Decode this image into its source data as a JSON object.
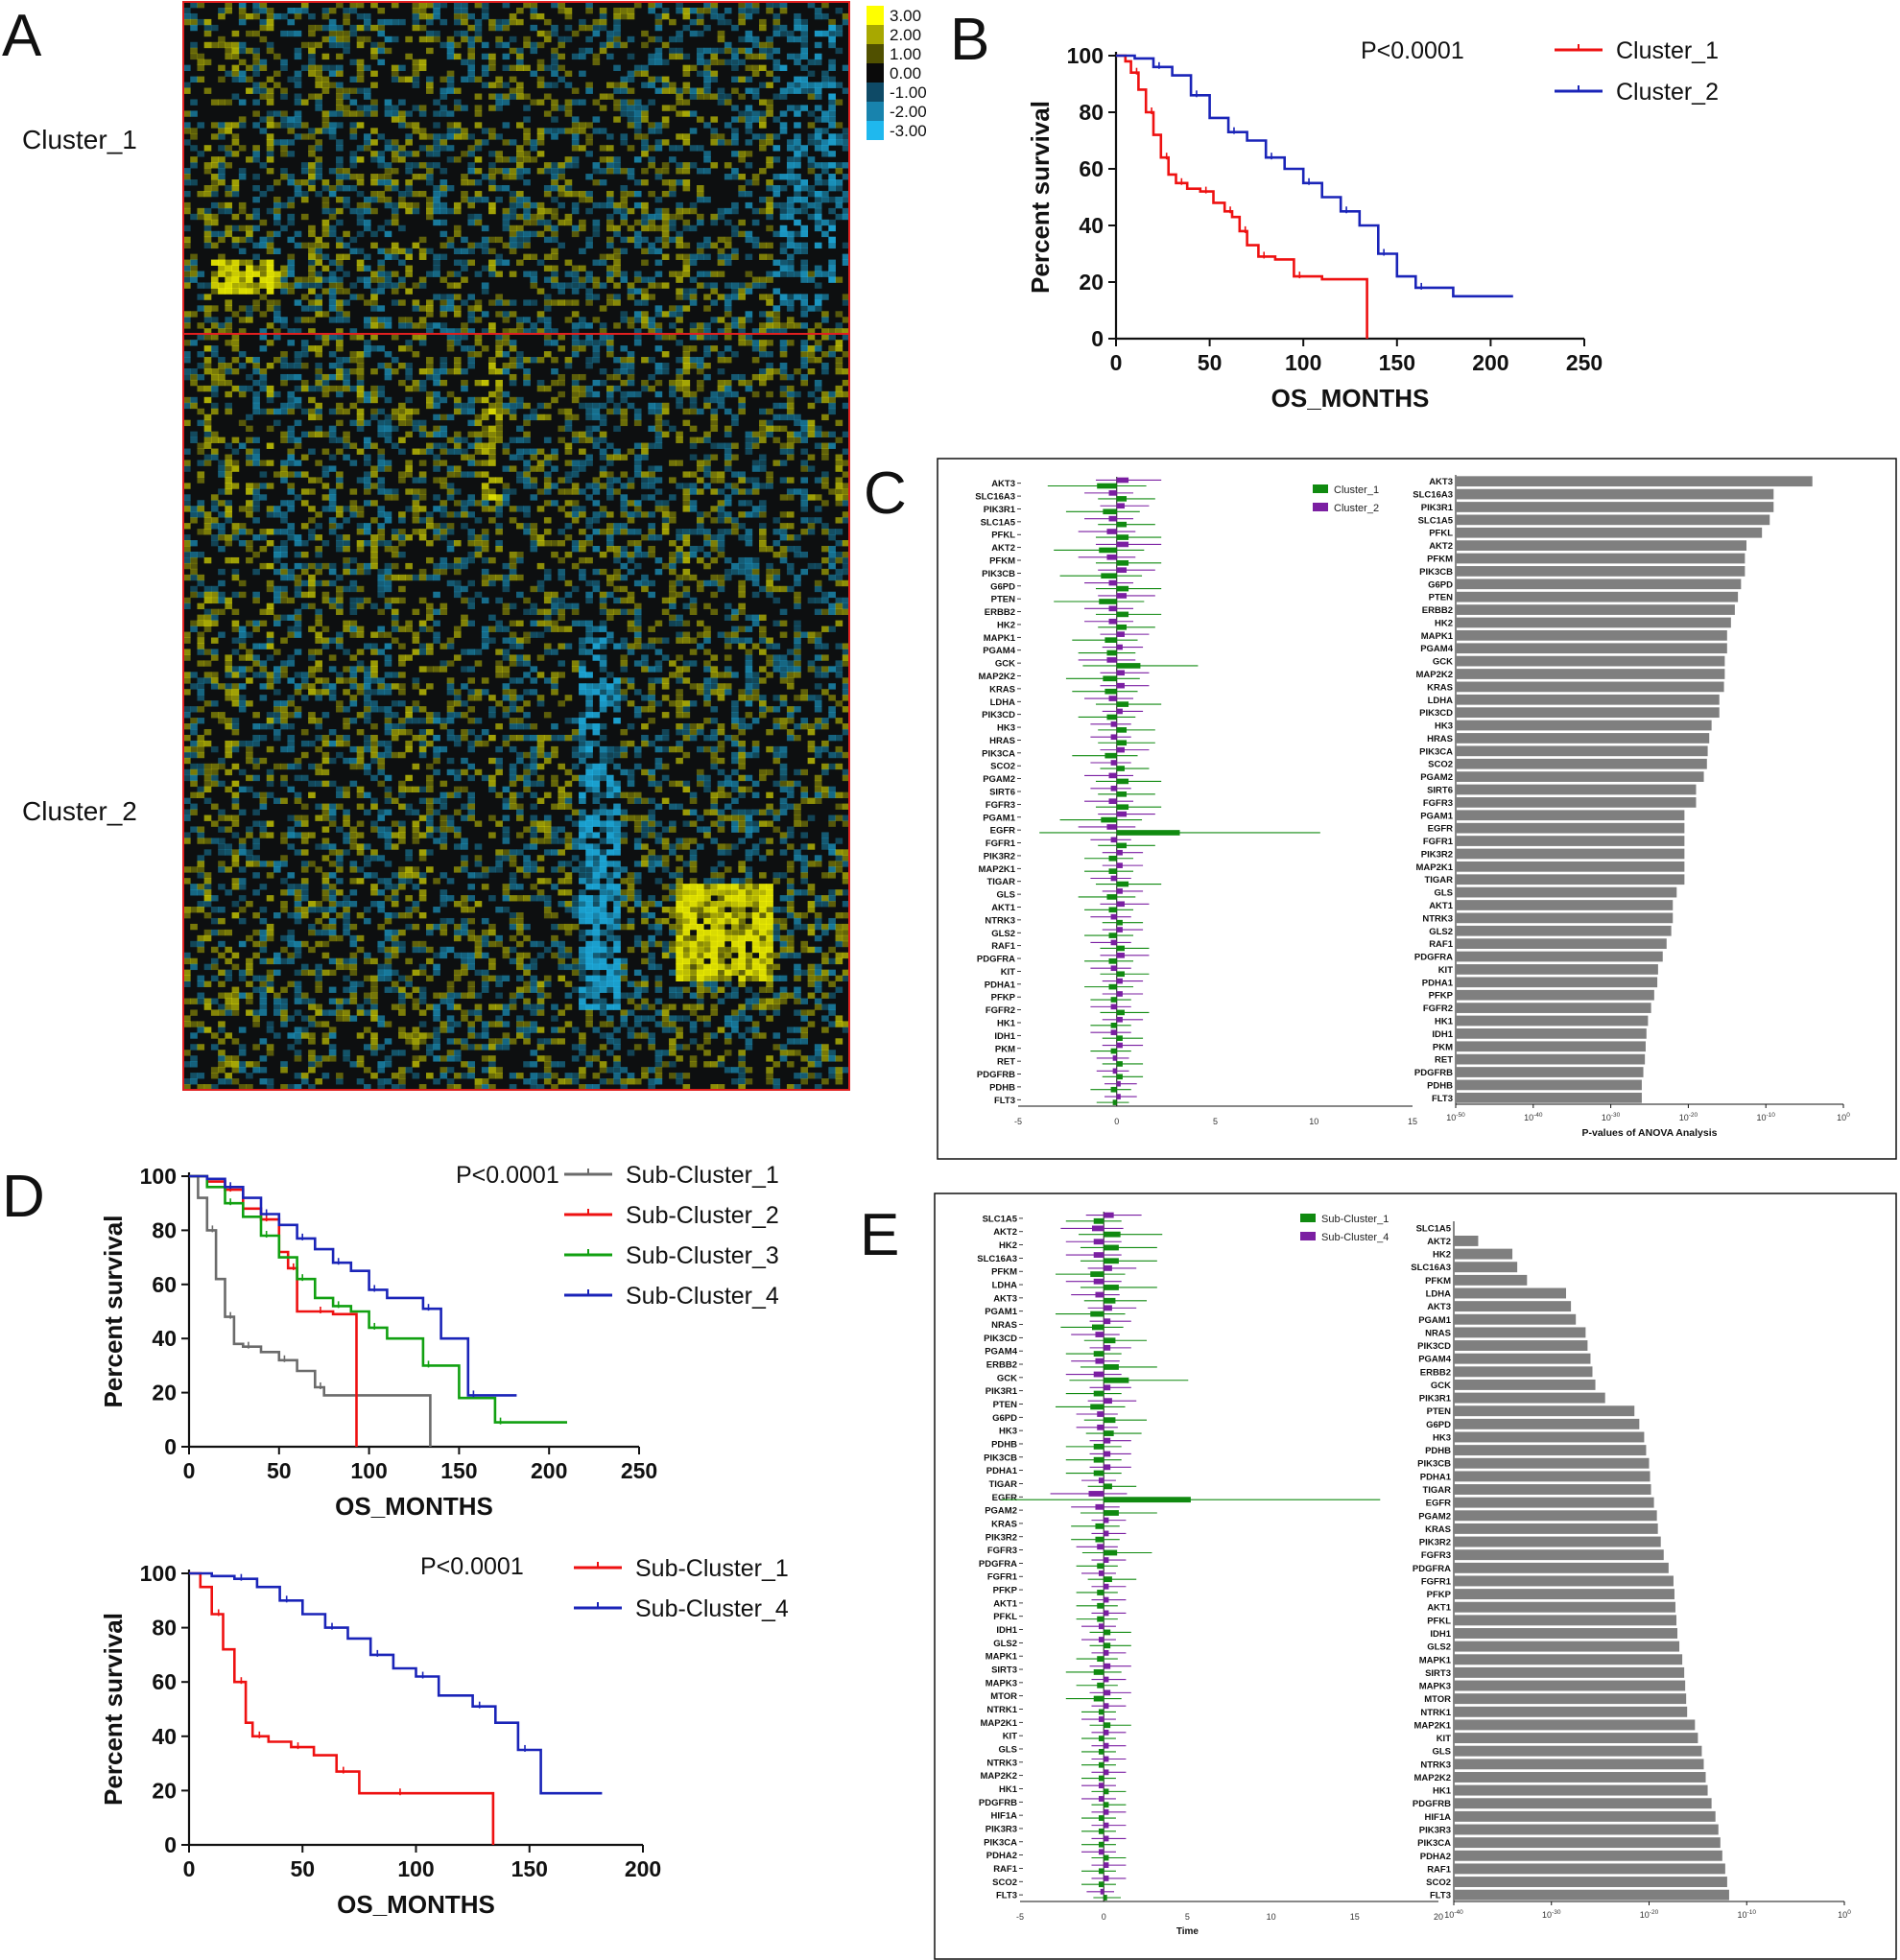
{
  "chart_data": [
    {
      "panel": "A",
      "type": "heatmap",
      "title": "",
      "row_groups": [
        "Cluster_1",
        "Cluster_2"
      ],
      "legend_values": [
        "3.00",
        "2.00",
        "1.00",
        "0.00",
        "-1.00",
        "-2.00",
        "-3.00"
      ],
      "colors": {
        "high": "#ffff00",
        "mid": "#101010",
        "low": "#1fb8ee",
        "border": "#e02020"
      }
    },
    {
      "panel": "B",
      "type": "line",
      "title": "",
      "xlabel": "OS_MONTHS",
      "ylabel": "Percent survival",
      "xlim": [
        0,
        250
      ],
      "ylim": [
        0,
        100
      ],
      "xticks": [
        0,
        50,
        100,
        150,
        200,
        250
      ],
      "yticks": [
        0,
        20,
        40,
        60,
        80,
        100
      ],
      "annotation": "P<0.0001",
      "series": [
        {
          "name": "Cluster_1",
          "color": "#ee1111",
          "x": [
            0,
            5,
            8,
            12,
            16,
            20,
            24,
            28,
            32,
            38,
            45,
            52,
            58,
            62,
            66,
            70,
            76,
            85,
            95,
            110,
            134
          ],
          "y": [
            100,
            98,
            94,
            88,
            80,
            72,
            64,
            58,
            55,
            53,
            52,
            48,
            45,
            43,
            38,
            33,
            29,
            28,
            22,
            21,
            0
          ]
        },
        {
          "name": "Cluster_2",
          "color": "#1a24b8",
          "x": [
            0,
            10,
            20,
            30,
            40,
            50,
            60,
            70,
            80,
            90,
            100,
            110,
            120,
            130,
            140,
            150,
            160,
            180,
            212
          ],
          "y": [
            100,
            99,
            96,
            93,
            86,
            78,
            73,
            70,
            64,
            60,
            55,
            50,
            45,
            40,
            30,
            22,
            18,
            15,
            15
          ]
        }
      ]
    },
    {
      "panel": "C",
      "type": "bar",
      "title": "",
      "legend": [
        "Cluster_1",
        "Cluster_2"
      ],
      "legend_colors": [
        "#108a10",
        "#7b1fa2"
      ],
      "left_xticks": [
        "-5",
        "0",
        "5",
        "10",
        "15"
      ],
      "right_xlabel": "P-values of ANOVA Analysis",
      "right_xticks": [
        "10-50",
        "10-40",
        "10-30",
        "10-20",
        "10-10",
        "100"
      ],
      "categories": [
        "AKT3",
        "SLC16A3",
        "PIK3R1",
        "SLC1A5",
        "PFKL",
        "AKT2",
        "PFKM",
        "PIK3CB",
        "G6PD",
        "PTEN",
        "ERBB2",
        "HK2",
        "MAPK1",
        "PGAM4",
        "GCK",
        "MAP2K2",
        "KRAS",
        "LDHA",
        "PIK3CD",
        "HK3",
        "HRAS",
        "PIK3CA",
        "SCO2",
        "PGAM2",
        "SIRT6",
        "FGFR3",
        "PGAM1",
        "EGFR",
        "FGFR1",
        "PIK3R2",
        "MAP2K1",
        "TIGAR",
        "GLS",
        "AKT1",
        "NTRK3",
        "GLS2",
        "RAF1",
        "PDGFRA",
        "KIT",
        "PDHA1",
        "PFKP",
        "FGFR2",
        "HK1",
        "IDH1",
        "PKM",
        "RET",
        "PDGFRB",
        "PDHB",
        "FLT3"
      ],
      "series": [
        {
          "name": "Cluster_1",
          "values": [
            -1.0,
            0.5,
            -0.7,
            0.5,
            0.6,
            -0.9,
            0.6,
            -0.8,
            0.6,
            -0.9,
            0.6,
            0.5,
            -0.6,
            -0.5,
            1.2,
            -0.7,
            -0.6,
            0.6,
            -0.5,
            0.5,
            0.5,
            -0.6,
            0.4,
            0.6,
            0.5,
            0.6,
            -0.8,
            3.2,
            0.5,
            -0.4,
            -0.4,
            0.6,
            -0.5,
            -0.4,
            0.3,
            -0.4,
            0.4,
            -0.4,
            0.4,
            -0.4,
            -0.3,
            0.4,
            -0.3,
            0.3,
            -0.3,
            0.3,
            0.3,
            -0.3,
            -0.2
          ]
        },
        {
          "name": "Cluster_2",
          "values": [
            0.6,
            -0.4,
            0.4,
            -0.4,
            -0.5,
            0.6,
            -0.5,
            0.5,
            -0.4,
            0.5,
            -0.4,
            -0.4,
            0.4,
            0.3,
            -0.5,
            0.4,
            0.4,
            -0.4,
            0.3,
            -0.3,
            -0.3,
            0.4,
            -0.3,
            -0.4,
            -0.3,
            -0.4,
            0.5,
            -0.5,
            -0.3,
            0.3,
            0.3,
            -0.3,
            0.3,
            0.4,
            -0.3,
            0.3,
            -0.3,
            0.4,
            -0.3,
            0.3,
            0.3,
            -0.3,
            0.3,
            -0.3,
            0.3,
            -0.2,
            -0.2,
            0.2,
            0.2
          ]
        }
      ],
      "pvalue_log10": [
        -4,
        -9,
        -9,
        -9.5,
        -10.5,
        -12.5,
        -12.7,
        -12.7,
        -13.2,
        -13.6,
        -14,
        -14.5,
        -15,
        -15,
        -15.3,
        -15.3,
        -15.4,
        -16,
        -16,
        -17,
        -17.3,
        -17.5,
        -17.6,
        -18,
        -19,
        -19,
        -20.5,
        -20.5,
        -20.5,
        -20.5,
        -20.5,
        -20.5,
        -21.5,
        -22,
        -22,
        -22.2,
        -22.8,
        -23.3,
        -23.9,
        -24,
        -24.4,
        -24.8,
        -25.2,
        -25.4,
        -25.5,
        -25.6,
        -25.8,
        -26,
        -26
      ]
    },
    {
      "panel": "D",
      "type": "line",
      "title": "",
      "xlabel": "OS_MONTHS",
      "ylabel": "Percent survival",
      "xlim": [
        0,
        250
      ],
      "ylim": [
        0,
        100
      ],
      "xticks": [
        0,
        50,
        100,
        150,
        200,
        250
      ],
      "yticks": [
        0,
        20,
        40,
        60,
        80,
        100
      ],
      "annotation": "P<0.0001",
      "series": [
        {
          "name": "Sub-Cluster_1",
          "color": "#6b6b6b",
          "x": [
            0,
            5,
            10,
            15,
            20,
            25,
            30,
            40,
            50,
            60,
            70,
            75,
            90,
            100,
            134
          ],
          "y": [
            100,
            92,
            80,
            62,
            48,
            38,
            37,
            35,
            32,
            28,
            22,
            19,
            19,
            19,
            0
          ]
        },
        {
          "name": "Sub-Cluster_2",
          "color": "#ee1111",
          "x": [
            0,
            10,
            20,
            30,
            40,
            50,
            55,
            60,
            70,
            80,
            93
          ],
          "y": [
            100,
            98,
            95,
            88,
            84,
            72,
            66,
            50,
            50,
            49,
            0
          ]
        },
        {
          "name": "Sub-Cluster_3",
          "color": "#11a011",
          "x": [
            0,
            10,
            20,
            30,
            40,
            50,
            60,
            70,
            80,
            90,
            100,
            110,
            130,
            150,
            170,
            210
          ],
          "y": [
            100,
            96,
            90,
            85,
            78,
            70,
            62,
            55,
            52,
            50,
            44,
            40,
            30,
            18,
            9,
            9
          ]
        },
        {
          "name": "Sub-Cluster_4",
          "color": "#1a24b8",
          "x": [
            0,
            10,
            20,
            30,
            40,
            50,
            60,
            70,
            80,
            90,
            100,
            110,
            130,
            140,
            155,
            182
          ],
          "y": [
            100,
            99,
            96,
            92,
            86,
            82,
            77,
            73,
            68,
            65,
            58,
            55,
            51,
            40,
            19,
            19
          ]
        }
      ]
    },
    {
      "panel": "D-lower",
      "type": "line",
      "title": "",
      "xlabel": "OS_MONTHS",
      "ylabel": "Percent survival",
      "xlim": [
        0,
        200
      ],
      "ylim": [
        0,
        100
      ],
      "xticks": [
        0,
        50,
        100,
        150,
        200
      ],
      "yticks": [
        0,
        20,
        40,
        60,
        80,
        100
      ],
      "annotation": "P<0.0001",
      "series": [
        {
          "name": "Sub-Cluster_1",
          "color": "#ee1111",
          "x": [
            0,
            5,
            10,
            15,
            20,
            25,
            28,
            35,
            45,
            55,
            65,
            75,
            90,
            110,
            134
          ],
          "y": [
            100,
            95,
            85,
            72,
            60,
            45,
            40,
            38,
            36,
            33,
            27,
            19,
            19,
            19,
            0
          ]
        },
        {
          "name": "Sub-Cluster_4",
          "color": "#1a24b8",
          "x": [
            0,
            10,
            20,
            30,
            40,
            50,
            60,
            70,
            80,
            90,
            100,
            110,
            125,
            135,
            145,
            155,
            182
          ],
          "y": [
            100,
            99,
            98,
            95,
            90,
            85,
            80,
            76,
            70,
            65,
            62,
            55,
            51,
            45,
            35,
            19,
            19
          ]
        }
      ]
    },
    {
      "panel": "E",
      "type": "bar",
      "title": "",
      "legend": [
        "Sub-Cluster_1",
        "Sub-Cluster_4"
      ],
      "legend_colors": [
        "#108a10",
        "#7b1fa2"
      ],
      "left_xticks": [
        "-5",
        "0",
        "5",
        "10",
        "15",
        "20"
      ],
      "left_xlabel": "Time",
      "right_xticks": [
        "10-40",
        "10-30",
        "10-20",
        "10-10",
        "100"
      ],
      "categories": [
        "SLC1A5",
        "AKT2",
        "HK2",
        "SLC16A3",
        "PFKM",
        "LDHA",
        "AKT3",
        "PGAM1",
        "NRAS",
        "PIK3CD",
        "PGAM4",
        "ERBB2",
        "GCK",
        "PIK3R1",
        "PTEN",
        "G6PD",
        "HK3",
        "PDHB",
        "PIK3CB",
        "PDHA1",
        "TIGAR",
        "EGFR",
        "PGAM2",
        "KRAS",
        "PIK3R2",
        "FGFR3",
        "PDGFRA",
        "FGFR1",
        "PFKP",
        "AKT1",
        "PFKL",
        "IDH1",
        "GLS2",
        "MAPK1",
        "SIRT3",
        "MAPK3",
        "MTOR",
        "NTRK1",
        "MAP2K1",
        "KIT",
        "GLS",
        "NTRK3",
        "MAP2K2",
        "HK1",
        "PDGFRB",
        "HIF1A",
        "PIK3R3",
        "PIK3CA",
        "PDHA2",
        "RAF1",
        "SCO2",
        "FLT3"
      ],
      "series": [
        {
          "name": "Sub-Cluster_1",
          "values": [
            -0.6,
            1.0,
            0.9,
            0.9,
            -0.8,
            0.9,
            0.7,
            -0.8,
            -0.7,
            0.7,
            -0.6,
            0.9,
            1.5,
            -0.6,
            -0.8,
            0.7,
            0.6,
            -0.6,
            -0.6,
            -0.6,
            0.5,
            5.2,
            0.9,
            -0.5,
            -0.5,
            0.8,
            -0.4,
            0.5,
            -0.4,
            -0.4,
            -0.4,
            0.4,
            0.4,
            -0.4,
            -0.6,
            -0.4,
            -0.6,
            -0.3,
            0.4,
            -0.3,
            -0.3,
            -0.3,
            -0.3,
            0.3,
            0.3,
            -0.3,
            -0.3,
            -0.3,
            0.3,
            -0.3,
            -0.3,
            0.2
          ]
        },
        {
          "name": "Sub-Cluster_4",
          "values": [
            0.6,
            -0.7,
            -0.6,
            -0.6,
            0.5,
            -0.6,
            -0.5,
            0.5,
            0.4,
            -0.5,
            0.4,
            -0.5,
            -0.6,
            0.4,
            0.5,
            -0.4,
            -0.4,
            0.4,
            0.4,
            0.4,
            -0.3,
            -0.9,
            -0.5,
            0.3,
            0.3,
            -0.4,
            0.3,
            -0.3,
            0.3,
            0.3,
            0.3,
            -0.3,
            -0.3,
            0.3,
            0.4,
            0.3,
            0.4,
            0.3,
            -0.3,
            0.3,
            0.3,
            0.3,
            0.3,
            -0.3,
            -0.3,
            0.3,
            0.3,
            0.3,
            -0.3,
            0.3,
            0.3,
            -0.2
          ]
        }
      ],
      "pvalue_log10": [
        -41,
        -37.5,
        -34,
        -33.5,
        -32.5,
        -28.5,
        -28,
        -27.5,
        -26.5,
        -26.3,
        -26,
        -25.8,
        -25.5,
        -24.5,
        -21.5,
        -21,
        -20.5,
        -20.3,
        -20,
        -19.9,
        -19.8,
        -19.5,
        -19.2,
        -19.1,
        -18.8,
        -18.5,
        -18,
        -17.5,
        -17.4,
        -17.3,
        -17.2,
        -17.1,
        -16.9,
        -16.6,
        -16.4,
        -16.3,
        -16.2,
        -16.1,
        -15.3,
        -15,
        -14.6,
        -14.4,
        -14.2,
        -14,
        -13.6,
        -13.2,
        -12.9,
        -12.7,
        -12.5,
        -12.2,
        -12,
        -11.8
      ]
    }
  ],
  "panel_letters": [
    "A",
    "B",
    "C",
    "D",
    "E"
  ],
  "pvalue_label_parts": {
    "base": "10",
    "exps": [
      "-50",
      "-40",
      "-30",
      "-20",
      "-10",
      "0"
    ]
  }
}
